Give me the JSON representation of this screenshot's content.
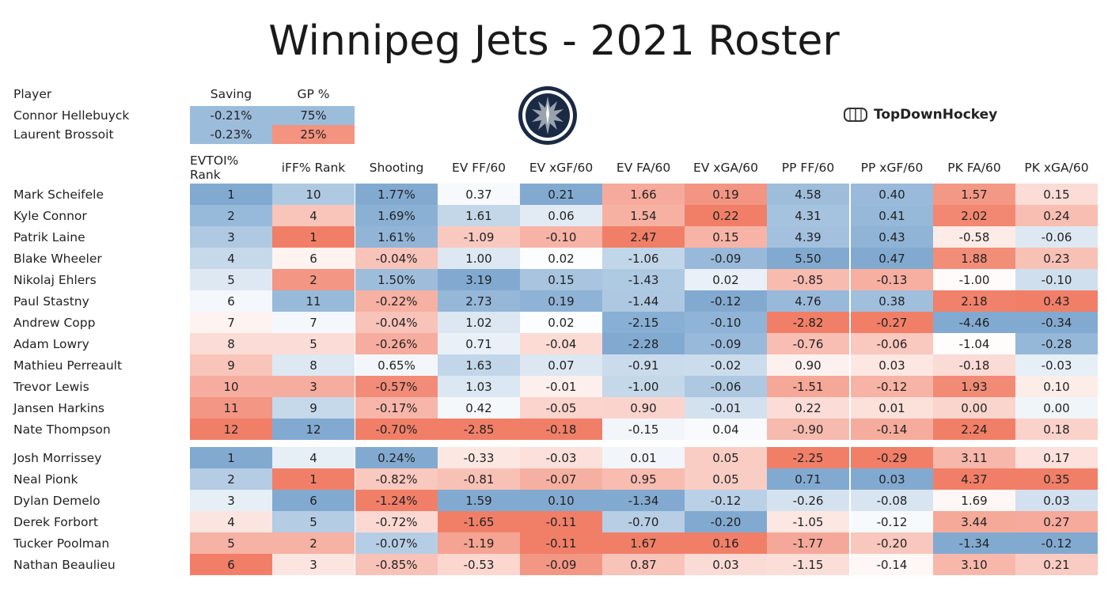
{
  "title": "Winnipeg Jets - 2021 Roster",
  "brand": {
    "name": "TopDownHockey",
    "icon": "rink-icon"
  },
  "logo": {
    "icon": "jets-logo-icon"
  },
  "colors": {
    "blue": "#7ba6cf",
    "red": "#f07860",
    "neutral": "#ffffff"
  },
  "chart_data": {
    "type": "table",
    "title": "Winnipeg Jets - 2021 Roster",
    "goalies": {
      "columns": [
        "Player",
        "Saving",
        "GP %"
      ],
      "rows": [
        {
          "player": "Connor Hellebuyck",
          "saving": "-0.21%",
          "gp": "75%"
        },
        {
          "player": "Laurent Brossoit",
          "saving": "-0.23%",
          "gp": "25%"
        }
      ]
    },
    "skater_columns": [
      "EVTOI% Rank",
      "iFF% Rank",
      "Shooting",
      "EV FF/60",
      "EV xGF/60",
      "EV FA/60",
      "EV xGA/60",
      "PP FF/60",
      "PP xGF/60",
      "PK FA/60",
      "PK xGA/60"
    ],
    "forwards": [
      {
        "player": "Mark Scheifele",
        "values": [
          "1",
          "10",
          "1.77%",
          "0.37",
          "0.21",
          "1.66",
          "0.19",
          "4.58",
          "0.40",
          "1.57",
          "0.15"
        ]
      },
      {
        "player": "Kyle Connor",
        "values": [
          "2",
          "4",
          "1.69%",
          "1.61",
          "0.06",
          "1.54",
          "0.22",
          "4.31",
          "0.41",
          "2.02",
          "0.24"
        ]
      },
      {
        "player": "Patrik Laine",
        "values": [
          "3",
          "1",
          "1.61%",
          "-1.09",
          "-0.10",
          "2.47",
          "0.15",
          "4.39",
          "0.43",
          "-0.58",
          "-0.06"
        ]
      },
      {
        "player": "Blake Wheeler",
        "values": [
          "4",
          "6",
          "-0.04%",
          "1.00",
          "0.02",
          "-1.06",
          "-0.09",
          "5.50",
          "0.47",
          "1.88",
          "0.23"
        ]
      },
      {
        "player": "Nikolaj Ehlers",
        "values": [
          "5",
          "2",
          "1.50%",
          "3.19",
          "0.15",
          "-1.43",
          "0.02",
          "-0.85",
          "-0.13",
          "-1.00",
          "-0.10"
        ]
      },
      {
        "player": "Paul Stastny",
        "values": [
          "6",
          "11",
          "-0.22%",
          "2.73",
          "0.19",
          "-1.44",
          "-0.12",
          "4.76",
          "0.38",
          "2.18",
          "0.43"
        ]
      },
      {
        "player": "Andrew Copp",
        "values": [
          "7",
          "7",
          "-0.04%",
          "1.02",
          "0.02",
          "-2.15",
          "-0.10",
          "-2.82",
          "-0.27",
          "-4.46",
          "-0.34"
        ]
      },
      {
        "player": "Adam Lowry",
        "values": [
          "8",
          "5",
          "-0.26%",
          "0.71",
          "-0.04",
          "-2.28",
          "-0.09",
          "-0.76",
          "-0.06",
          "-1.04",
          "-0.28"
        ]
      },
      {
        "player": "Mathieu Perreault",
        "values": [
          "9",
          "8",
          "0.65%",
          "1.63",
          "0.07",
          "-0.91",
          "-0.02",
          "0.90",
          "0.03",
          "-0.18",
          "-0.03"
        ]
      },
      {
        "player": "Trevor Lewis",
        "values": [
          "10",
          "3",
          "-0.57%",
          "1.03",
          "-0.01",
          "-1.00",
          "-0.06",
          "-1.51",
          "-0.12",
          "1.93",
          "0.10"
        ]
      },
      {
        "player": "Jansen Harkins",
        "values": [
          "11",
          "9",
          "-0.17%",
          "0.42",
          "-0.05",
          "0.90",
          "-0.01",
          "0.22",
          "0.01",
          "0.00",
          "0.00"
        ]
      },
      {
        "player": "Nate Thompson",
        "values": [
          "12",
          "12",
          "-0.70%",
          "-2.85",
          "-0.18",
          "-0.15",
          "0.04",
          "-0.90",
          "-0.14",
          "2.24",
          "0.18"
        ]
      }
    ],
    "defense": [
      {
        "player": "Josh Morrissey",
        "values": [
          "1",
          "4",
          "0.24%",
          "-0.33",
          "-0.03",
          "0.01",
          "0.05",
          "-2.25",
          "-0.29",
          "3.11",
          "0.17"
        ]
      },
      {
        "player": "Neal Pionk",
        "values": [
          "2",
          "1",
          "-0.82%",
          "-0.81",
          "-0.07",
          "0.95",
          "0.05",
          "0.71",
          "0.03",
          "4.37",
          "0.35"
        ]
      },
      {
        "player": "Dylan Demelo",
        "values": [
          "3",
          "6",
          "-1.24%",
          "1.59",
          "0.10",
          "-1.34",
          "-0.12",
          "-0.26",
          "-0.08",
          "1.69",
          "0.03"
        ]
      },
      {
        "player": "Derek Forbort",
        "values": [
          "4",
          "5",
          "-0.72%",
          "-1.65",
          "-0.11",
          "-0.70",
          "-0.20",
          "-1.05",
          "-0.12",
          "3.44",
          "0.27"
        ]
      },
      {
        "player": "Tucker Poolman",
        "values": [
          "5",
          "2",
          "-0.07%",
          "-1.19",
          "-0.11",
          "1.67",
          "0.16",
          "-1.77",
          "-0.20",
          "-1.34",
          "-0.12"
        ]
      },
      {
        "player": "Nathan Beaulieu",
        "values": [
          "6",
          "3",
          "-0.85%",
          "-0.53",
          "-0.09",
          "0.87",
          "0.03",
          "-1.15",
          "-0.14",
          "3.10",
          "0.21"
        ]
      }
    ]
  }
}
